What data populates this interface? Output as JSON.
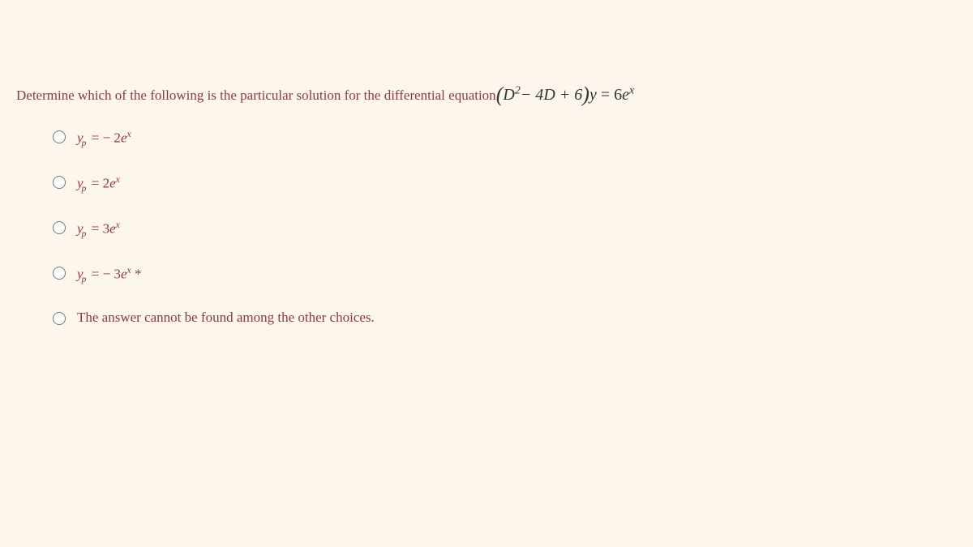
{
  "question": {
    "prompt_text": "Determine which of the following is the particular solution for the differential equation ",
    "eq_lparen": "(",
    "eq_D": "D",
    "eq_exp2": "2",
    "eq_mid": "− 4",
    "eq_D2": "D",
    "eq_plus6": "+ 6",
    "eq_rparen": ")",
    "eq_y": "y",
    "eq_eq": " = 6",
    "eq_e": "e",
    "eq_x": "x"
  },
  "options": [
    {
      "y": "y",
      "sub": "p",
      "rhs_pre": " = − 2",
      "e": "e",
      "exp": "x",
      "tail": ""
    },
    {
      "y": "y",
      "sub": "p",
      "rhs_pre": " = 2",
      "e": "e",
      "exp": "x",
      "tail": ""
    },
    {
      "y": "y",
      "sub": "p",
      "rhs_pre": " = 3",
      "e": "e",
      "exp": "x",
      "tail": ""
    },
    {
      "y": "y",
      "sub": "p",
      "rhs_pre": " = − 3",
      "e": "e",
      "exp": "x",
      "tail": " *"
    }
  ],
  "last_option": "The answer cannot be found among the other choices.",
  "colors": {
    "background": "#fdf6ec",
    "text_primary": "#8b3a3a",
    "math_text": "#333333"
  }
}
